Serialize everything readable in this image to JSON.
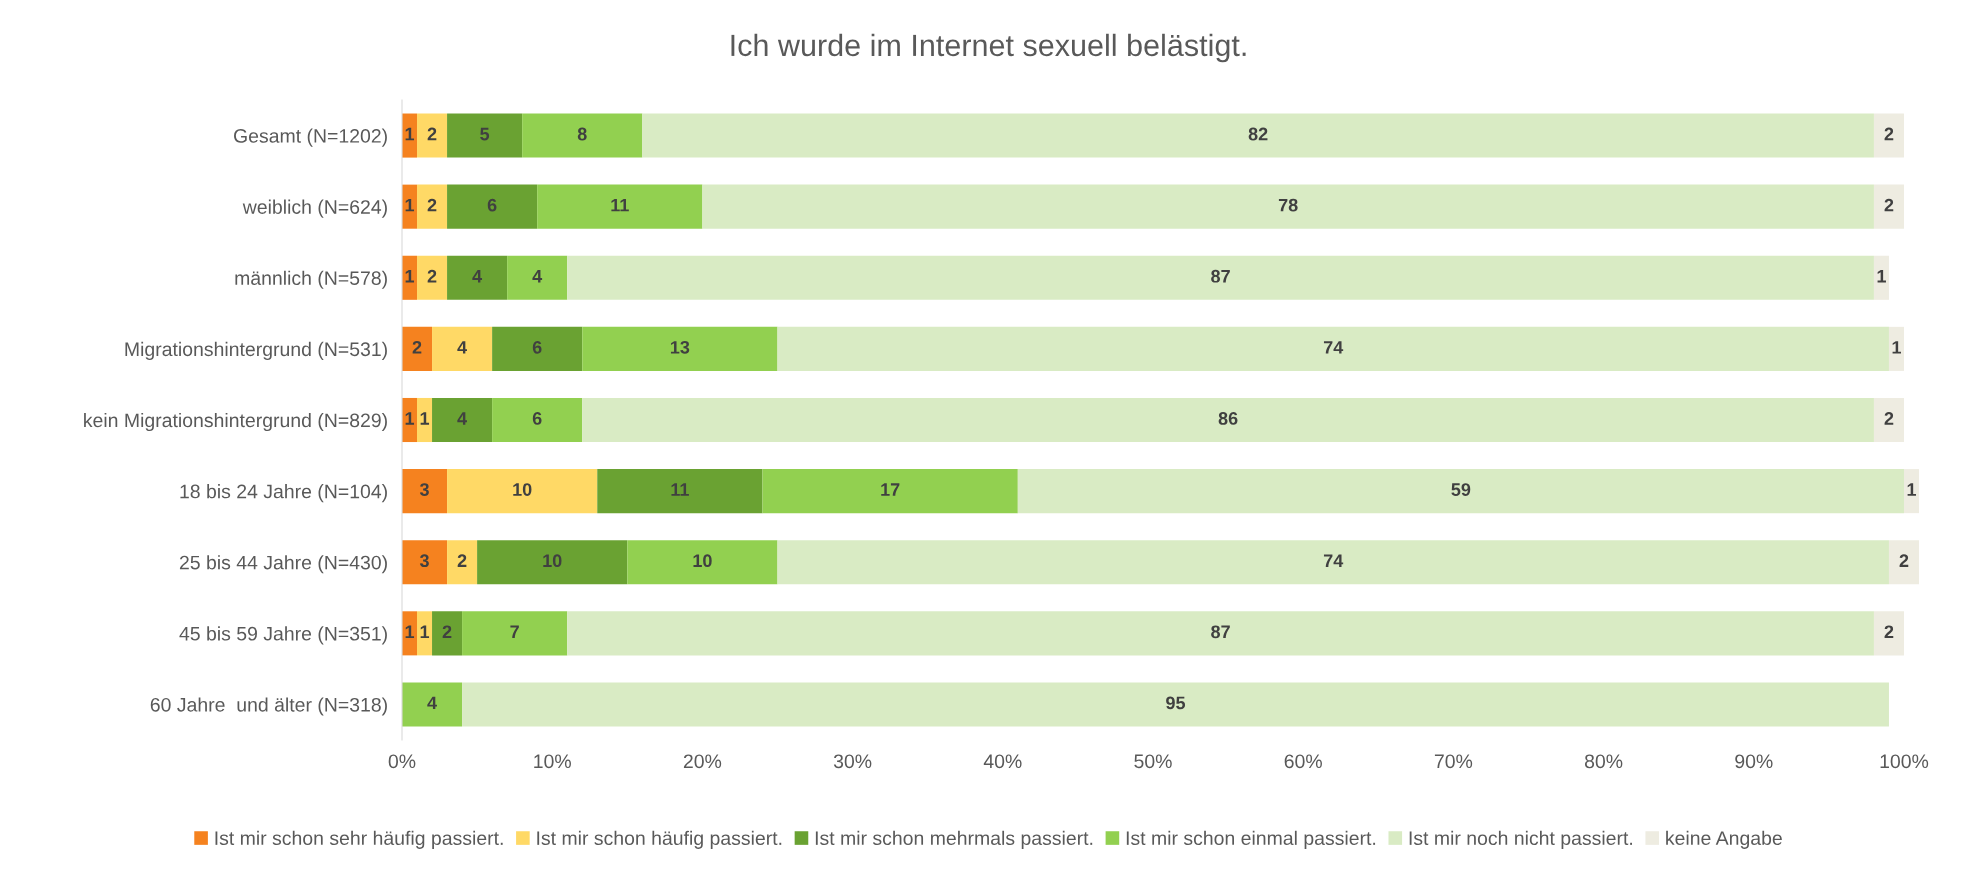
{
  "chart_data": {
    "type": "bar",
    "orientation": "horizontal",
    "stacked": true,
    "title": "Ich wurde im Internet sexuell belästigt.",
    "categories": [
      "Gesamt (N=1202)",
      "weiblich (N=624)",
      "männlich (N=578)",
      "Migrationshintergrund (N=531)",
      "kein Migrationshintergrund (N=829)",
      "18 bis 24 Jahre (N=104)",
      "25 bis 44 Jahre (N=430)",
      "45 bis 59 Jahre (N=351)",
      "60 Jahre  und älter (N=318)"
    ],
    "series": [
      {
        "name": "Ist mir schon sehr häufig passiert.",
        "color": "#f5821f",
        "values": [
          1,
          1,
          1,
          2,
          1,
          3,
          3,
          1,
          null
        ]
      },
      {
        "name": "Ist mir schon häufig passiert.",
        "color": "#ffd966",
        "values": [
          2,
          2,
          2,
          4,
          1,
          10,
          2,
          1,
          null
        ]
      },
      {
        "name": "Ist mir schon mehrmals passiert.",
        "color": "#6aa232",
        "values": [
          5,
          6,
          4,
          6,
          4,
          11,
          10,
          2,
          null
        ]
      },
      {
        "name": "Ist mir schon einmal passiert.",
        "color": "#92d050",
        "values": [
          8,
          11,
          4,
          13,
          6,
          17,
          10,
          7,
          4
        ]
      },
      {
        "name": "Ist mir noch nicht passiert.",
        "color": "#d9ebc4",
        "values": [
          82,
          78,
          87,
          74,
          86,
          59,
          74,
          87,
          95
        ]
      },
      {
        "name": "keine Angabe",
        "color": "#eeece1",
        "values": [
          2,
          2,
          1,
          1,
          2,
          1,
          2,
          2,
          null
        ]
      }
    ],
    "xlim": [
      0,
      101
    ],
    "xticks": [
      {
        "value": 0,
        "label": "0%"
      },
      {
        "value": 10,
        "label": "10%"
      },
      {
        "value": 20,
        "label": "20%"
      },
      {
        "value": 30,
        "label": "30%"
      },
      {
        "value": 40,
        "label": "40%"
      },
      {
        "value": 50,
        "label": "50%"
      },
      {
        "value": 60,
        "label": "60%"
      },
      {
        "value": 70,
        "label": "70%"
      },
      {
        "value": 80,
        "label": "80%"
      },
      {
        "value": 90,
        "label": "90%"
      },
      {
        "value": 100,
        "label": "100%"
      }
    ],
    "data_labels": true,
    "legend": "bottom",
    "grid": false
  }
}
